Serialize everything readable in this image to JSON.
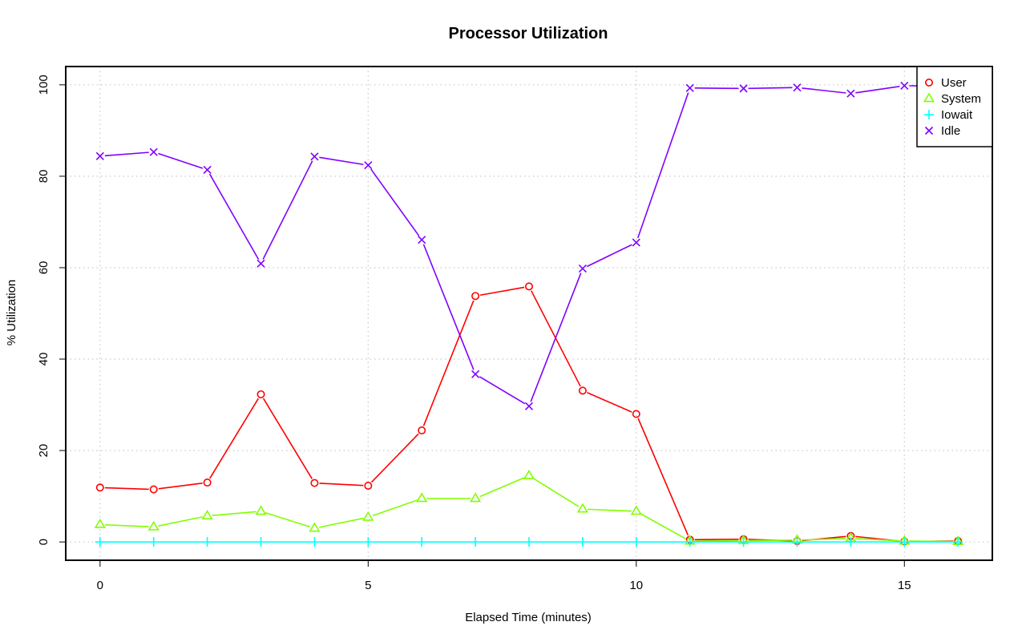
{
  "chart_data": {
    "type": "line",
    "title": "Processor Utilization",
    "xlabel": "Elapsed Time (minutes)",
    "ylabel": "% Utilization",
    "xlim": [
      -0.64,
      16.64
    ],
    "ylim": [
      -4,
      104
    ],
    "x_ticks": [
      0,
      5,
      10,
      15
    ],
    "y_ticks": [
      0,
      20,
      40,
      60,
      80,
      100
    ],
    "grid": true,
    "legend_position": "top-right",
    "x": [
      0,
      1,
      2,
      3,
      4,
      5,
      6,
      7,
      8,
      9,
      10,
      11,
      12,
      13,
      14,
      15,
      16
    ],
    "series": [
      {
        "name": "User",
        "color": "#ff0000",
        "marker": "circle",
        "values": [
          11.9,
          11.5,
          13.0,
          32.3,
          12.9,
          12.3,
          24.4,
          53.8,
          55.9,
          33.1,
          28.0,
          0.5,
          0.6,
          0.2,
          1.3,
          0.1,
          0.2
        ]
      },
      {
        "name": "System",
        "color": "#80ff00",
        "marker": "triangle",
        "values": [
          3.8,
          3.3,
          5.7,
          6.7,
          3.0,
          5.4,
          9.5,
          9.5,
          14.5,
          7.2,
          6.7,
          0.2,
          0.3,
          0.4,
          0.8,
          0.2,
          0.1
        ]
      },
      {
        "name": "Iowait",
        "color": "#00ffff",
        "marker": "plus",
        "values": [
          0,
          0,
          0,
          0,
          0,
          0,
          0,
          0,
          0,
          0,
          0,
          0,
          0,
          0,
          0,
          0,
          0
        ]
      },
      {
        "name": "Idle",
        "color": "#8000ff",
        "marker": "cross",
        "values": [
          84.4,
          85.3,
          81.4,
          60.9,
          84.3,
          82.4,
          66.1,
          36.7,
          29.7,
          59.8,
          65.5,
          99.3,
          99.2,
          99.4,
          98.1,
          99.8,
          99.7
        ]
      }
    ]
  }
}
